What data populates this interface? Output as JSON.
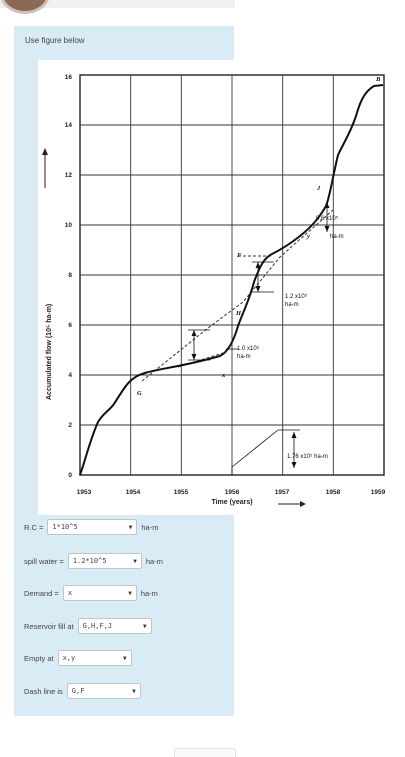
{
  "prompt": "Use figure below",
  "figure": {
    "y_axis_label": "Accumulated flow (10⁵ ha-m)",
    "x_axis_label": "Time (years)",
    "y_ticks": [
      "0",
      "2",
      "4",
      "6",
      "8",
      "10",
      "12",
      "14",
      "16"
    ],
    "x_ticks": [
      "1953",
      "1954",
      "1955",
      "1956",
      "1957",
      "1958",
      "1959"
    ],
    "point_labels": {
      "B": "B",
      "G": "G",
      "H": "H",
      "F": "F",
      "J": "J",
      "x": "x",
      "y": "y"
    },
    "annotations": {
      "a1": "0.6 x10⁵",
      "a1u": "ha-m",
      "a2": "1.2 x10⁵",
      "a2u": "ha-m",
      "a3": "1.0 x10⁵",
      "a3u": "ha-m",
      "a4": "1.76 x10⁵ ha-m"
    }
  },
  "form": {
    "rc": {
      "label": "R.C =",
      "value": "1*10^5",
      "unit": "ha-m"
    },
    "spill": {
      "label": "spill water =",
      "value": "1.2*10^5",
      "unit": "ha-m"
    },
    "demand": {
      "label": "Demand =",
      "value": "x",
      "unit": "ha-m"
    },
    "fill": {
      "label": "Reservoir fill at",
      "value": "G,H,F,J"
    },
    "empty": {
      "label": "Empty at",
      "value": "x,y"
    },
    "dash": {
      "label": "Dash line is",
      "value": "G,F"
    }
  }
}
